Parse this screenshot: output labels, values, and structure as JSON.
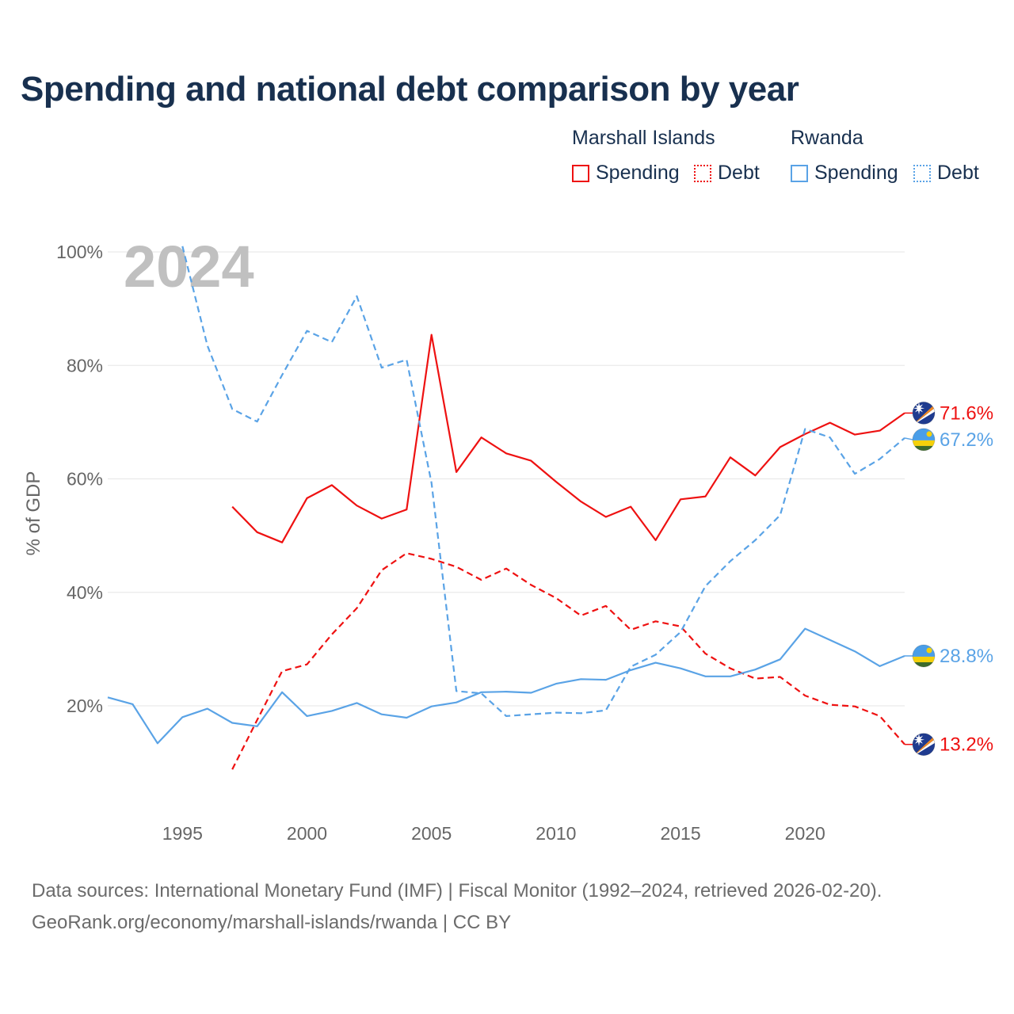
{
  "header": {
    "title": "Spending and national debt comparison by year"
  },
  "legend": {
    "marshall": {
      "name": "Marshall Islands",
      "spending": "Spending",
      "debt": "Debt"
    },
    "rwanda": {
      "name": "Rwanda",
      "spending": "Spending",
      "debt": "Debt"
    }
  },
  "colors": {
    "marshall": "#ee1111",
    "rwanda": "#5aa3e6",
    "title": "#18304f",
    "grid": "#e6e6e6",
    "axis_text": "#666666",
    "year_watermark": "#c0c0c0"
  },
  "footer": {
    "line1": "Data sources: International Monetary Fund (IMF) | Fiscal Monitor (1992–2024, retrieved 2026-02-20).",
    "line2": "GeoRank.org/economy/marshall-islands/rwanda | CC BY"
  },
  "chart_data": {
    "type": "line",
    "title": "Spending and national debt comparison by year",
    "year_label": "2024",
    "ylabel": "% of GDP",
    "xlabel": "",
    "xlim": [
      1992,
      2024
    ],
    "ylim": [
      4,
      100
    ],
    "y_ticks": [
      20,
      40,
      60,
      80,
      100
    ],
    "y_tick_labels": [
      "20%",
      "40%",
      "60%",
      "80%",
      "100%"
    ],
    "x_ticks": [
      1995,
      2000,
      2005,
      2010,
      2015,
      2020
    ],
    "x_tick_labels": [
      "1995",
      "2000",
      "2005",
      "2010",
      "2015",
      "2020"
    ],
    "grid": true,
    "series": [
      {
        "name": "Marshall Islands Spending",
        "country": "marshall",
        "style": "solid",
        "x": [
          1997,
          1998,
          1999,
          2000,
          2001,
          2002,
          2003,
          2004,
          2005,
          2006,
          2007,
          2008,
          2009,
          2010,
          2011,
          2012,
          2013,
          2014,
          2015,
          2016,
          2017,
          2018,
          2019,
          2020,
          2021,
          2022,
          2023,
          2024
        ],
        "values": [
          55.1,
          50.6,
          48.8,
          56.6,
          58.9,
          55.3,
          53.0,
          54.6,
          85.4,
          61.2,
          67.3,
          64.5,
          63.2,
          59.5,
          56.0,
          53.3,
          55.1,
          49.2,
          56.4,
          56.9,
          63.8,
          60.6,
          65.6,
          67.9,
          69.9,
          67.8,
          68.5,
          71.6
        ],
        "end_label": "71.6%"
      },
      {
        "name": "Marshall Islands Debt",
        "country": "marshall",
        "style": "dashed",
        "x": [
          1997,
          1998,
          1999,
          2000,
          2001,
          2002,
          2003,
          2004,
          2005,
          2006,
          2007,
          2008,
          2009,
          2010,
          2011,
          2012,
          2013,
          2014,
          2015,
          2016,
          2017,
          2018,
          2019,
          2020,
          2021,
          2022,
          2023,
          2024
        ],
        "values": [
          8.8,
          17.5,
          26.1,
          27.3,
          32.6,
          37.2,
          43.9,
          46.9,
          45.9,
          44.5,
          42.2,
          44.2,
          41.3,
          39.0,
          35.9,
          37.6,
          33.4,
          34.9,
          34.0,
          29.2,
          26.6,
          24.8,
          25.1,
          21.8,
          20.2,
          19.9,
          18.2,
          13.2
        ],
        "end_label": "13.2%"
      },
      {
        "name": "Rwanda Spending",
        "country": "rwanda",
        "style": "solid",
        "x": [
          1992,
          1993,
          1994,
          1995,
          1996,
          1997,
          1998,
          1999,
          2000,
          2001,
          2002,
          2003,
          2004,
          2005,
          2006,
          2007,
          2008,
          2009,
          2010,
          2011,
          2012,
          2013,
          2014,
          2015,
          2016,
          2017,
          2018,
          2019,
          2020,
          2021,
          2022,
          2023,
          2024
        ],
        "values": [
          21.5,
          20.3,
          13.4,
          18.0,
          19.5,
          17.0,
          16.4,
          22.4,
          18.2,
          19.1,
          20.5,
          18.5,
          17.9,
          19.9,
          20.6,
          22.4,
          22.5,
          22.3,
          23.9,
          24.7,
          24.6,
          26.3,
          27.6,
          26.6,
          25.2,
          25.2,
          26.4,
          28.2,
          33.6,
          31.6,
          29.6,
          27.0,
          28.8
        ],
        "end_label": "28.8%"
      },
      {
        "name": "Rwanda Debt",
        "country": "rwanda",
        "style": "dashed",
        "x": [
          1995,
          1996,
          1997,
          1998,
          1999,
          2000,
          2001,
          2002,
          2003,
          2004,
          2005,
          2006,
          2007,
          2008,
          2009,
          2010,
          2011,
          2012,
          2013,
          2014,
          2015,
          2016,
          2017,
          2018,
          2019,
          2020,
          2021,
          2022,
          2023,
          2024
        ],
        "values": [
          101.0,
          83.5,
          72.3,
          70.1,
          78.3,
          86.1,
          84.1,
          92.2,
          79.6,
          81.0,
          59.3,
          22.6,
          22.2,
          18.2,
          18.5,
          18.8,
          18.7,
          19.2,
          26.9,
          29.0,
          33.0,
          41.1,
          45.5,
          49.2,
          53.6,
          68.8,
          67.3,
          60.9,
          63.5,
          67.2
        ],
        "end_label": "67.2%"
      }
    ]
  }
}
